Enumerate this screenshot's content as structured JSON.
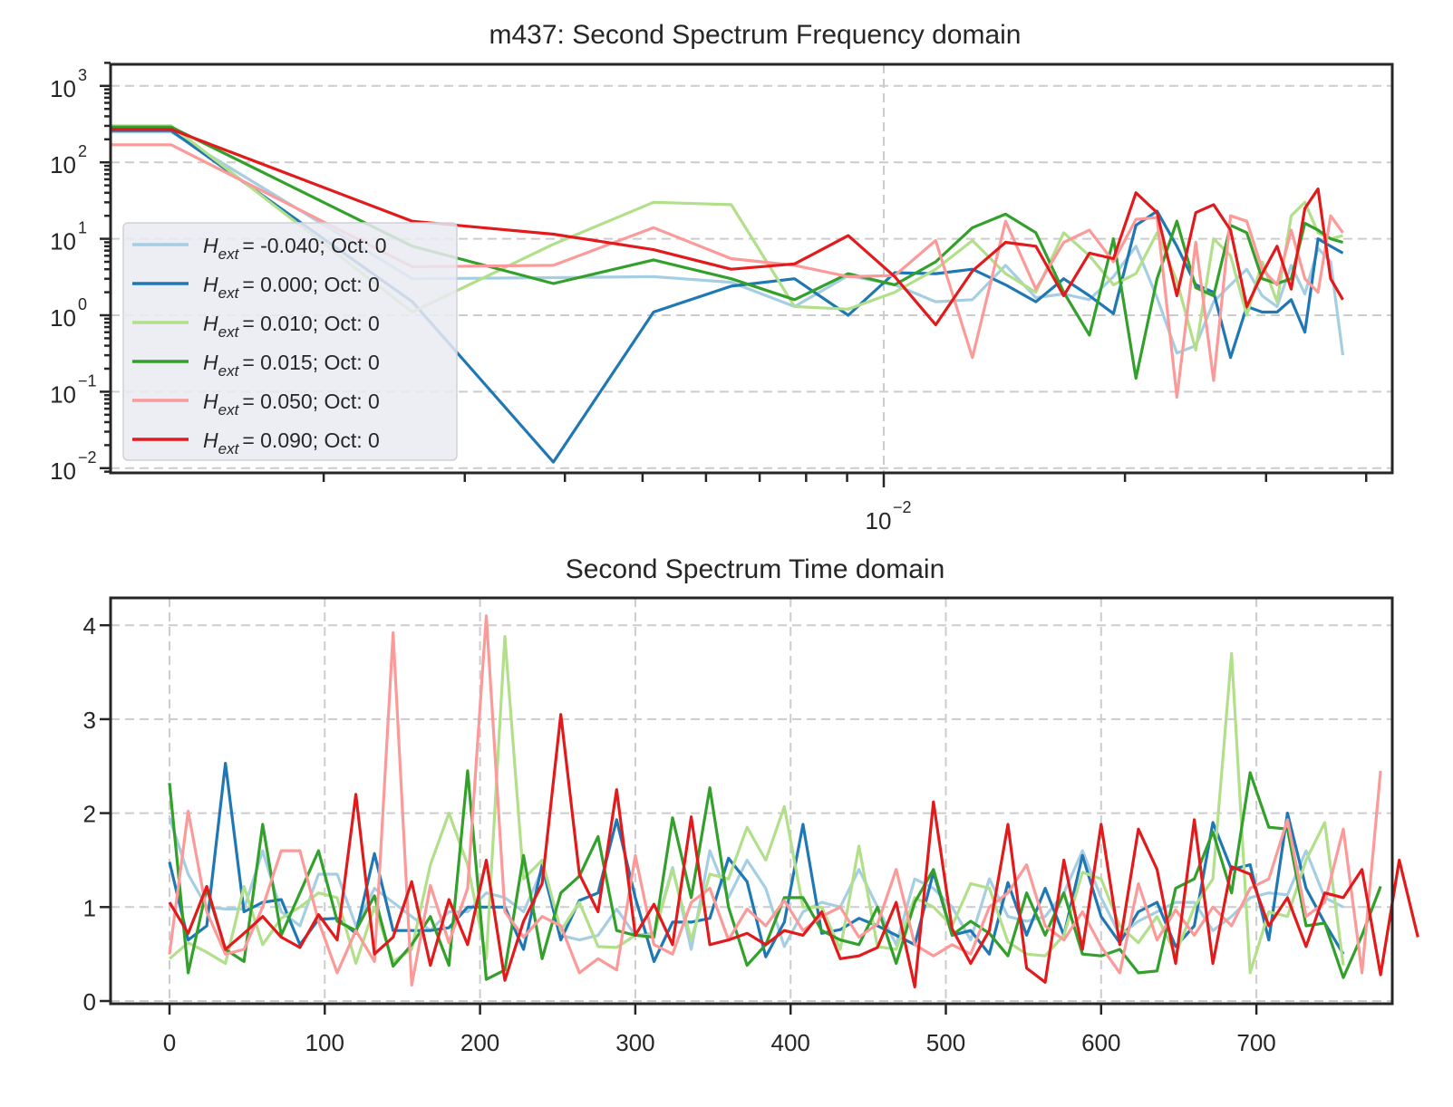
{
  "chart_data": [
    {
      "type": "line",
      "title": "m437: Second Spectrum Frequency domain",
      "xscale": "log",
      "yscale": "log",
      "xlabel": "",
      "ylabel": "",
      "xlim": [
        0.00108,
        0.044
      ],
      "ylim": [
        0.007,
        2000
      ],
      "grid": true,
      "legend_position": "lower-left",
      "x_major_ticks": [
        {
          "value": 0.01,
          "base": "10",
          "exp": "−2"
        }
      ],
      "y_major_ticks": [
        {
          "value": 1000,
          "base": "10",
          "exp": "3"
        },
        {
          "value": 100,
          "base": "10",
          "exp": "2"
        },
        {
          "value": 10,
          "base": "10",
          "exp": "1"
        },
        {
          "value": 1,
          "base": "10",
          "exp": "0"
        },
        {
          "value": 0.1,
          "base": "10",
          "exp": "−1"
        },
        {
          "value": 0.01,
          "base": "10",
          "exp": "−2"
        }
      ],
      "x": [
        0.00108,
        0.00129,
        0.00258,
        0.00387,
        0.00516,
        0.00645,
        0.00774,
        0.00903,
        0.01032,
        0.01161,
        0.0129,
        0.01419,
        0.01548,
        0.01677,
        0.01806,
        0.01935,
        0.02064,
        0.02193,
        0.02322,
        0.02451,
        0.0258,
        0.02709,
        0.02838,
        0.02967,
        0.03096,
        0.03225,
        0.03354,
        0.03483,
        0.03612,
        0.03741
      ],
      "series": [
        {
          "name": "H_ext = -0.040; Oct: 0",
          "color": "#a6cee3",
          "values": [
            250,
            250,
            3.0,
            3.1,
            3.2,
            2.7,
            1.3,
            3.3,
            2.5,
            1.5,
            1.6,
            4.5,
            1.7,
            1.9,
            1.6,
            3.2,
            8.0,
            1.7,
            0.32,
            0.4,
            1.5,
            2.5,
            4.0,
            1.8,
            1.3,
            4.5,
            1.9,
            7.5,
            5.0,
            0.3
          ]
        },
        {
          "name": "H_ext = 0.000; Oct: 0",
          "color": "#1f78b4",
          "values": [
            260,
            260,
            1.5,
            0.012,
            1.1,
            2.4,
            3.0,
            1.0,
            3.6,
            3.5,
            4.0,
            2.5,
            1.5,
            3.0,
            1.8,
            1.05,
            15,
            23,
            8.0,
            2.5,
            2.0,
            0.28,
            1.3,
            1.1,
            1.1,
            1.6,
            0.6,
            10,
            8.0,
            6.5
          ]
        },
        {
          "name": "H_ext = 0.010; Oct: 0",
          "color": "#b2df8a",
          "values": [
            300,
            300,
            1.1,
            8.5,
            30,
            28,
            1.3,
            1.2,
            2.0,
            4.0,
            9.5,
            3.5,
            2.0,
            12,
            6.0,
            2.5,
            3.5,
            12,
            2.8,
            0.35,
            10,
            6.0,
            1.0,
            5.0,
            1.5,
            20,
            30,
            12,
            10,
            11
          ]
        },
        {
          "name": "H_ext = 0.015; Oct: 0",
          "color": "#33a02c",
          "values": [
            290,
            290,
            8.0,
            2.6,
            5.3,
            3.0,
            1.6,
            3.5,
            2.5,
            5.0,
            14,
            21,
            12,
            2.0,
            0.55,
            10,
            0.15,
            3.0,
            17,
            2.3,
            1.8,
            15,
            12,
            3.0,
            2.6,
            3.0,
            16,
            13,
            10,
            9.0
          ]
        },
        {
          "name": "H_ext = 0.050; Oct: 0",
          "color": "#fb9a99",
          "values": [
            170,
            170,
            4.3,
            4.5,
            14,
            5.5,
            4.5,
            3.2,
            3.3,
            9.5,
            0.28,
            17,
            2.2,
            9.0,
            13,
            5.0,
            18,
            19,
            0.085,
            9.0,
            0.14,
            20,
            17,
            4.0,
            2.5,
            13,
            3.0,
            2.0,
            20,
            12
          ]
        },
        {
          "name": "H_ext = 0.090; Oct: 0",
          "color": "#e31a1c",
          "values": [
            270,
            270,
            17,
            11.5,
            7.2,
            4.0,
            4.7,
            11,
            3.2,
            0.75,
            3.8,
            9.0,
            8.0,
            1.8,
            6.5,
            5.5,
            40,
            22,
            1.8,
            22,
            28,
            13,
            1.3,
            3.5,
            8.0,
            2.2,
            25,
            45,
            3.0,
            1.6
          ]
        }
      ]
    },
    {
      "type": "line",
      "title": "Second Spectrum Time domain",
      "xlabel": "",
      "ylabel": "",
      "xlim": [
        -38,
        783
      ],
      "ylim": [
        -0.05,
        4.3
      ],
      "grid": true,
      "x_ticks": [
        0,
        100,
        200,
        300,
        400,
        500,
        600,
        700
      ],
      "x_tick_labels": [
        "0",
        "100",
        "200",
        "300",
        "400",
        "500",
        "600",
        "700"
      ],
      "y_ticks": [
        0,
        1,
        2,
        3,
        4
      ],
      "y_tick_labels": [
        "0",
        "1",
        "2",
        "3",
        "4"
      ],
      "x_step": 12,
      "series": [
        {
          "name": "H_ext = -0.040; Oct: 0",
          "color": "#a6cee3",
          "values": [
            1.95,
            1.35,
            1.0,
            0.98,
            0.98,
            1.6,
            0.95,
            0.8,
            1.35,
            1.35,
            0.8,
            1.2,
            1.05,
            0.9,
            0.75,
            0.95,
            0.95,
            1.15,
            1.1,
            0.95,
            1.4,
            0.7,
            0.65,
            0.7,
            0.98,
            0.7,
            0.72,
            1.42,
            0.55,
            1.6,
            1.1,
            1.5,
            1.2,
            0.58,
            0.95,
            1.05,
            1.0,
            1.4,
            1.0,
            0.6,
            1.3,
            1.2,
            1.0,
            0.65,
            1.3,
            0.9,
            0.85,
            0.9,
            1.15,
            1.6,
            1.1,
            0.7,
            0.85,
            0.95,
            1.05,
            1.05,
            0.75,
            0.9,
            1.1,
            1.15,
            1.13,
            1.6,
            1.1,
            1.0
          ]
        },
        {
          "name": "H_ext = 0.000; Oct: 0",
          "color": "#1f78b4",
          "values": [
            1.48,
            0.65,
            0.8,
            2.53,
            0.95,
            1.05,
            1.08,
            0.6,
            0.87,
            0.88,
            0.72,
            1.57,
            0.75,
            0.75,
            0.75,
            0.78,
            1.0,
            1.0,
            1.0,
            0.55,
            1.45,
            0.65,
            1.07,
            1.15,
            1.93,
            1.1,
            0.42,
            0.84,
            0.84,
            0.88,
            1.52,
            1.27,
            0.47,
            0.84,
            1.88,
            0.72,
            0.76,
            0.88,
            0.8,
            0.7,
            0.6,
            1.37,
            0.7,
            0.75,
            0.5,
            1.26,
            0.7,
            1.2,
            0.7,
            1.55,
            0.9,
            0.62,
            0.95,
            1.05,
            0.58,
            0.8,
            1.9,
            1.4,
            1.45,
            0.65,
            2.0,
            1.2,
            0.83,
            0.5
          ]
        },
        {
          "name": "H_ext = 0.010; Oct: 0",
          "color": "#b2df8a",
          "values": [
            0.45,
            0.62,
            0.52,
            0.4,
            1.22,
            0.6,
            0.88,
            1.0,
            1.15,
            1.1,
            0.4,
            1.0,
            0.42,
            0.55,
            1.45,
            2.0,
            1.45,
            0.45,
            3.88,
            1.3,
            1.5,
            0.75,
            1.05,
            0.58,
            0.57,
            0.7,
            0.7,
            1.4,
            0.65,
            1.35,
            1.3,
            1.85,
            1.5,
            2.07,
            1.0,
            1.0,
            0.55,
            1.65,
            0.58,
            0.55,
            1.1,
            1.0,
            0.8,
            1.25,
            1.2,
            0.63,
            0.5,
            0.48,
            0.7,
            1.37,
            1.3,
            0.8,
            0.62,
            0.9,
            0.5,
            1.0,
            1.3,
            3.7,
            0.3,
            0.95,
            0.9,
            1.5,
            1.9,
            0.38
          ]
        },
        {
          "name": "H_ext = 0.015; Oct: 0",
          "color": "#33a02c",
          "values": [
            2.32,
            0.3,
            1.2,
            0.55,
            0.42,
            1.88,
            0.7,
            1.15,
            1.6,
            0.85,
            0.75,
            1.12,
            0.37,
            0.6,
            0.9,
            0.38,
            2.45,
            0.23,
            0.33,
            1.55,
            0.45,
            1.15,
            1.33,
            1.75,
            0.75,
            0.7,
            0.68,
            1.95,
            1.1,
            2.27,
            1.0,
            0.38,
            0.6,
            1.1,
            1.1,
            0.75,
            0.65,
            0.6,
            1.0,
            0.4,
            1.05,
            1.4,
            0.7,
            0.85,
            0.72,
            0.48,
            1.15,
            0.7,
            1.15,
            0.5,
            0.48,
            0.55,
            0.3,
            0.32,
            1.2,
            1.3,
            1.8,
            1.15,
            2.43,
            1.85,
            1.83,
            0.8,
            0.83,
            0.25,
            0.7,
            1.22
          ]
        },
        {
          "name": "H_ext = 0.050; Oct: 0",
          "color": "#fb9a99",
          "values": [
            0.5,
            2.02,
            0.95,
            0.5,
            0.55,
            1.0,
            1.6,
            1.6,
            0.85,
            0.3,
            0.75,
            0.42,
            3.92,
            0.17,
            1.23,
            0.62,
            1.2,
            4.1,
            0.95,
            0.68,
            0.9,
            0.8,
            0.3,
            0.45,
            0.33,
            1.55,
            0.6,
            0.5,
            1.05,
            1.2,
            0.65,
            0.98,
            0.8,
            1.07,
            0.75,
            0.9,
            1.0,
            0.68,
            0.82,
            1.4,
            0.6,
            0.48,
            0.6,
            0.5,
            1.0,
            1.15,
            1.45,
            0.8,
            0.65,
            0.95,
            0.58,
            0.3,
            1.25,
            0.65,
            0.97,
            0.7,
            1.0,
            0.8,
            1.2,
            1.3,
            1.93,
            0.9,
            1.05,
            1.83,
            0.3,
            2.45
          ]
        },
        {
          "name": "H_ext = 0.090; Oct: 0",
          "color": "#e31a1c",
          "values": [
            1.05,
            0.72,
            1.22,
            0.55,
            0.72,
            0.9,
            0.68,
            0.57,
            0.92,
            0.65,
            2.2,
            0.5,
            0.68,
            1.27,
            0.38,
            1.08,
            0.6,
            1.5,
            0.22,
            0.85,
            1.25,
            3.05,
            1.35,
            0.95,
            2.25,
            0.7,
            1.03,
            0.6,
            1.96,
            0.6,
            0.65,
            0.72,
            0.6,
            0.75,
            0.7,
            0.95,
            0.45,
            0.48,
            0.57,
            1.05,
            0.15,
            2.12,
            0.77,
            0.4,
            0.75,
            1.88,
            0.35,
            0.2,
            1.5,
            0.55,
            1.88,
            0.6,
            1.83,
            1.4,
            0.4,
            1.93,
            0.4,
            1.43,
            1.35,
            0.8,
            1.1,
            0.58,
            1.15,
            1.1,
            1.4,
            0.28,
            1.5,
            0.68
          ]
        }
      ]
    }
  ],
  "legend": {
    "symbol": "H",
    "subscript": "ext",
    "entries": [
      {
        "value_text": "=  -0.040; Oct: 0",
        "color": "#a6cee3"
      },
      {
        "value_text": "=  0.000; Oct: 0",
        "color": "#1f78b4"
      },
      {
        "value_text": "=  0.010; Oct: 0",
        "color": "#b2df8a"
      },
      {
        "value_text": "=  0.015; Oct: 0",
        "color": "#33a02c"
      },
      {
        "value_text": "=  0.050; Oct: 0",
        "color": "#fb9a99"
      },
      {
        "value_text": "=  0.090; Oct: 0",
        "color": "#e31a1c"
      }
    ]
  }
}
